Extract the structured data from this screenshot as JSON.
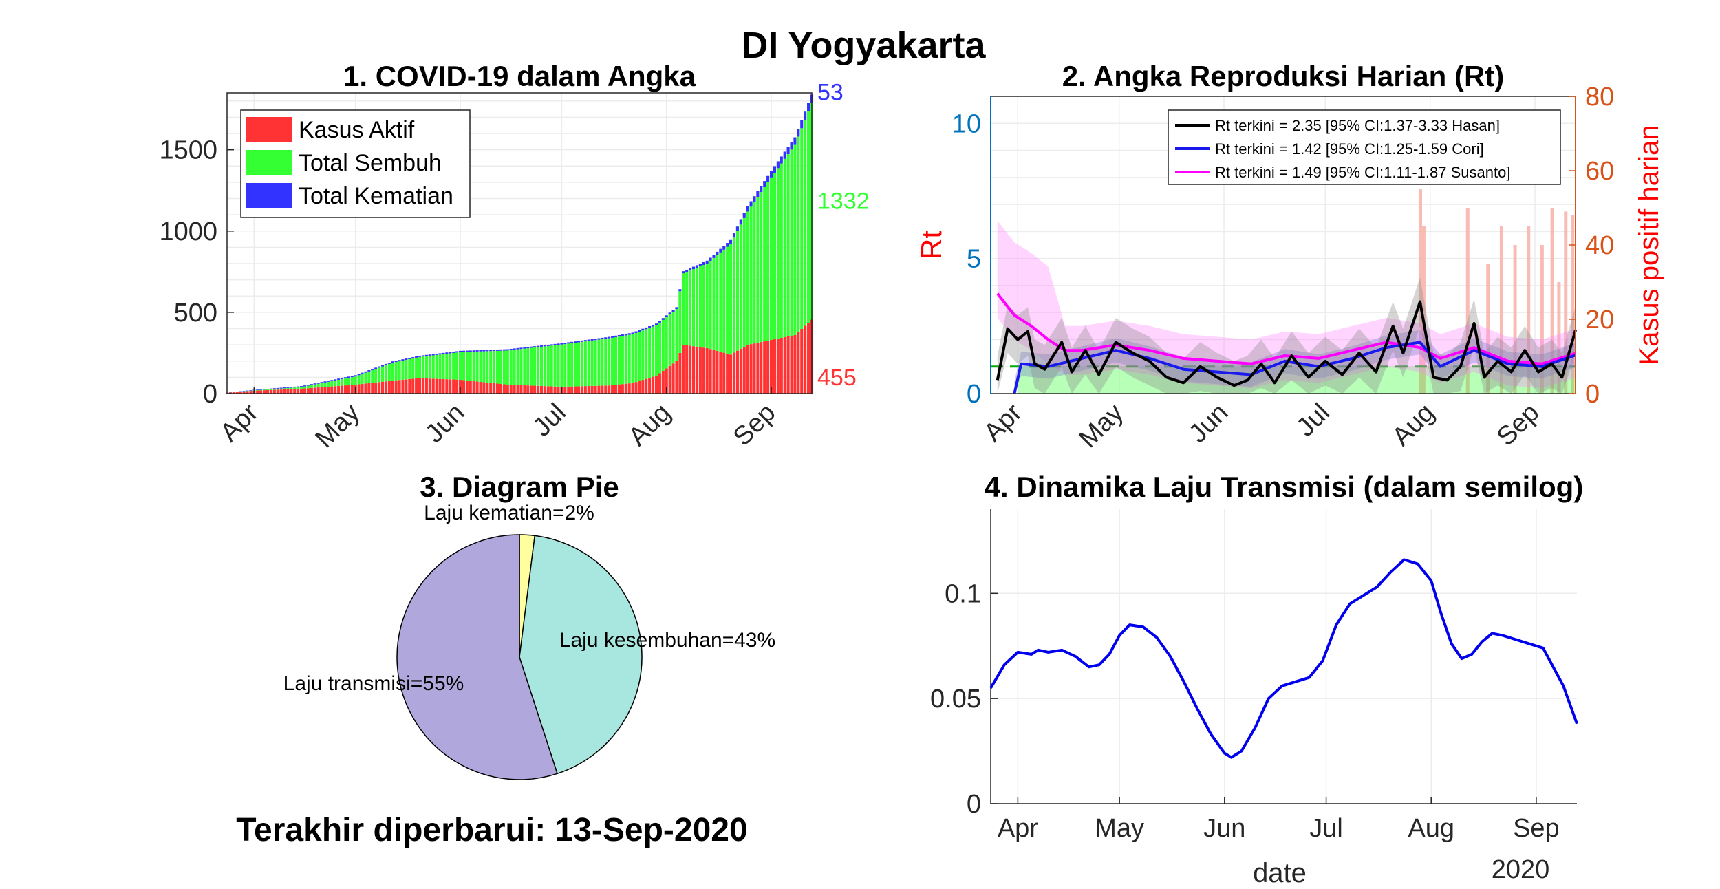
{
  "page": {
    "title": "DI Yogyakarta",
    "footer": "Terakhir diperbarui: 13-Sep-2020"
  },
  "colors": {
    "aktif": "#ff3333",
    "sembuh": "#33ff33",
    "kematian": "#3333ff",
    "rt_hasan": "#000000",
    "rt_cori": "#1a1aee",
    "rt_susanto": "#ff00ff",
    "daily_cases": "#f7b0a8",
    "transmission": "#0000ee",
    "pie_transmisi": "#b0a8dc",
    "pie_sembuh": "#a8e6e0",
    "pie_kematian": "#ffffa0"
  },
  "chart_data": [
    {
      "id": "p1",
      "type": "bar",
      "title": "1. COVID-19 dalam Angka",
      "stacked": true,
      "x_ticks": [
        "Apr",
        "May",
        "Jun",
        "Jul",
        "Aug",
        "Sep"
      ],
      "x_range": [
        "2020-03-24",
        "2020-09-13"
      ],
      "ylim": [
        0,
        1850
      ],
      "yticks": [
        0,
        500,
        1000,
        1500
      ],
      "grid": true,
      "legend": {
        "position": "top-left",
        "entries": [
          "Kasus Aktif",
          "Total Sembuh",
          "Total Kematian"
        ]
      },
      "end_labels": {
        "kematian": "53",
        "sembuh": "1332",
        "aktif": "455"
      },
      "series": [
        {
          "name": "Kasus Aktif",
          "points": [
            [
              "2020-03-24",
              5
            ],
            [
              "2020-04-01",
              18
            ],
            [
              "2020-04-15",
              30
            ],
            [
              "2020-05-01",
              55
            ],
            [
              "2020-05-12",
              80
            ],
            [
              "2020-05-20",
              95
            ],
            [
              "2020-06-01",
              85
            ],
            [
              "2020-06-15",
              55
            ],
            [
              "2020-07-01",
              42
            ],
            [
              "2020-07-15",
              50
            ],
            [
              "2020-07-22",
              65
            ],
            [
              "2020-07-29",
              110
            ],
            [
              "2020-08-04",
              200
            ],
            [
              "2020-08-06",
              300
            ],
            [
              "2020-08-13",
              280
            ],
            [
              "2020-08-20",
              240
            ],
            [
              "2020-08-25",
              300
            ],
            [
              "2020-09-01",
              330
            ],
            [
              "2020-09-08",
              360
            ],
            [
              "2020-09-13",
              455
            ]
          ]
        },
        {
          "name": "Total Sembuh",
          "points": [
            [
              "2020-03-24",
              0
            ],
            [
              "2020-04-01",
              2
            ],
            [
              "2020-04-15",
              10
            ],
            [
              "2020-05-01",
              50
            ],
            [
              "2020-05-12",
              110
            ],
            [
              "2020-05-20",
              130
            ],
            [
              "2020-06-01",
              170
            ],
            [
              "2020-06-15",
              210
            ],
            [
              "2020-07-01",
              260
            ],
            [
              "2020-07-15",
              290
            ],
            [
              "2020-07-22",
              300
            ],
            [
              "2020-07-29",
              310
            ],
            [
              "2020-08-04",
              320
            ],
            [
              "2020-08-06",
              440
            ],
            [
              "2020-08-13",
              520
            ],
            [
              "2020-08-20",
              680
            ],
            [
              "2020-08-25",
              820
            ],
            [
              "2020-09-01",
              1000
            ],
            [
              "2020-09-08",
              1170
            ],
            [
              "2020-09-13",
              1332
            ]
          ]
        },
        {
          "name": "Total Kematian",
          "points": [
            [
              "2020-03-24",
              1
            ],
            [
              "2020-04-01",
              3
            ],
            [
              "2020-04-15",
              6
            ],
            [
              "2020-05-01",
              8
            ],
            [
              "2020-05-12",
              8
            ],
            [
              "2020-05-20",
              8
            ],
            [
              "2020-06-01",
              8
            ],
            [
              "2020-06-15",
              8
            ],
            [
              "2020-07-01",
              8
            ],
            [
              "2020-07-15",
              9
            ],
            [
              "2020-07-22",
              10
            ],
            [
              "2020-07-29",
              11
            ],
            [
              "2020-08-04",
              12
            ],
            [
              "2020-08-06",
              13
            ],
            [
              "2020-08-13",
              18
            ],
            [
              "2020-08-20",
              25
            ],
            [
              "2020-08-25",
              32
            ],
            [
              "2020-09-01",
              40
            ],
            [
              "2020-09-08",
              47
            ],
            [
              "2020-09-13",
              53
            ]
          ]
        }
      ]
    },
    {
      "id": "p2",
      "type": "line",
      "title": "2. Angka Reproduksi Harian (Rt)",
      "ylabel": "Rt",
      "ylabel_right": "Kasus positif harian",
      "x_ticks": [
        "Apr",
        "May",
        "Jun",
        "Jul",
        "Aug",
        "Sep"
      ],
      "x_range": [
        "2020-03-24",
        "2020-09-13"
      ],
      "ylim": [
        0,
        11
      ],
      "yticks": [
        0,
        5,
        10
      ],
      "ylim_right": [
        0,
        80
      ],
      "yticks_right": [
        0,
        20,
        40,
        60,
        80
      ],
      "grid": true,
      "threshold": 1,
      "legend": {
        "position": "top-right",
        "entries": [
          "Rt terkini = 2.35 [95% CI:1.37-3.33 Hasan]",
          "Rt terkini = 1.42 [95% CI:1.25-1.59 Cori]",
          "Rt terkini = 1.49 [95% CI:1.11-1.87 Susanto]"
        ]
      },
      "series": [
        {
          "name": "Rt terkini = 2.35 [95% CI:1.37-3.33 Hasan]",
          "points": [
            [
              "2020-03-26",
              0.5
            ],
            [
              "2020-03-29",
              2.4
            ],
            [
              "2020-04-01",
              2.0
            ],
            [
              "2020-04-04",
              2.3
            ],
            [
              "2020-04-06",
              1.1
            ],
            [
              "2020-04-09",
              0.9
            ],
            [
              "2020-04-14",
              1.9
            ],
            [
              "2020-04-17",
              0.8
            ],
            [
              "2020-04-21",
              1.6
            ],
            [
              "2020-04-25",
              0.7
            ],
            [
              "2020-04-30",
              1.9
            ],
            [
              "2020-05-05",
              1.5
            ],
            [
              "2020-05-10",
              1.2
            ],
            [
              "2020-05-15",
              0.6
            ],
            [
              "2020-05-20",
              0.4
            ],
            [
              "2020-05-25",
              1.0
            ],
            [
              "2020-05-30",
              0.6
            ],
            [
              "2020-06-04",
              0.3
            ],
            [
              "2020-06-08",
              0.5
            ],
            [
              "2020-06-12",
              1.1
            ],
            [
              "2020-06-16",
              0.4
            ],
            [
              "2020-06-21",
              1.4
            ],
            [
              "2020-06-26",
              0.6
            ],
            [
              "2020-07-01",
              1.2
            ],
            [
              "2020-07-06",
              0.7
            ],
            [
              "2020-07-11",
              1.5
            ],
            [
              "2020-07-16",
              0.8
            ],
            [
              "2020-07-21",
              2.5
            ],
            [
              "2020-07-24",
              1.5
            ],
            [
              "2020-07-29",
              3.4
            ],
            [
              "2020-08-02",
              0.6
            ],
            [
              "2020-08-06",
              0.5
            ],
            [
              "2020-08-10",
              1.0
            ],
            [
              "2020-08-14",
              2.6
            ],
            [
              "2020-08-17",
              0.6
            ],
            [
              "2020-08-21",
              1.2
            ],
            [
              "2020-08-25",
              0.8
            ],
            [
              "2020-08-29",
              1.6
            ],
            [
              "2020-09-02",
              0.8
            ],
            [
              "2020-09-06",
              1.1
            ],
            [
              "2020-09-09",
              0.6
            ],
            [
              "2020-09-13",
              2.35
            ]
          ]
        },
        {
          "name": "Rt terkini = 1.42 [95% CI:1.25-1.59 Cori]",
          "points": [
            [
              "2020-03-31",
              0.0
            ],
            [
              "2020-04-02",
              1.1
            ],
            [
              "2020-04-10",
              1.0
            ],
            [
              "2020-04-20",
              1.3
            ],
            [
              "2020-04-30",
              1.6
            ],
            [
              "2020-05-10",
              1.3
            ],
            [
              "2020-05-20",
              0.9
            ],
            [
              "2020-05-30",
              0.8
            ],
            [
              "2020-06-09",
              0.7
            ],
            [
              "2020-06-19",
              1.2
            ],
            [
              "2020-06-29",
              1.0
            ],
            [
              "2020-07-09",
              1.3
            ],
            [
              "2020-07-19",
              1.7
            ],
            [
              "2020-07-29",
              1.9
            ],
            [
              "2020-08-04",
              1.0
            ],
            [
              "2020-08-14",
              1.6
            ],
            [
              "2020-08-24",
              1.1
            ],
            [
              "2020-09-03",
              1.0
            ],
            [
              "2020-09-13",
              1.42
            ]
          ]
        },
        {
          "name": "Rt terkini = 1.49 [95% CI:1.11-1.87 Susanto]",
          "points": [
            [
              "2020-03-26",
              3.7
            ],
            [
              "2020-03-31",
              2.9
            ],
            [
              "2020-04-05",
              2.5
            ],
            [
              "2020-04-10",
              2.0
            ],
            [
              "2020-04-15",
              1.6
            ],
            [
              "2020-04-20",
              1.6
            ],
            [
              "2020-04-30",
              1.8
            ],
            [
              "2020-05-10",
              1.6
            ],
            [
              "2020-05-20",
              1.3
            ],
            [
              "2020-05-30",
              1.2
            ],
            [
              "2020-06-09",
              1.1
            ],
            [
              "2020-06-19",
              1.4
            ],
            [
              "2020-06-29",
              1.3
            ],
            [
              "2020-07-09",
              1.6
            ],
            [
              "2020-07-19",
              1.9
            ],
            [
              "2020-07-29",
              1.7
            ],
            [
              "2020-08-04",
              1.3
            ],
            [
              "2020-08-14",
              1.7
            ],
            [
              "2020-08-24",
              1.2
            ],
            [
              "2020-09-03",
              1.1
            ],
            [
              "2020-09-13",
              1.49
            ]
          ]
        },
        {
          "name": "Kasus positif harian",
          "axis": "right",
          "points": [
            [
              "2020-07-29",
              55
            ],
            [
              "2020-07-30",
              45
            ],
            [
              "2020-08-12",
              50
            ],
            [
              "2020-08-18",
              35
            ],
            [
              "2020-08-22",
              45
            ],
            [
              "2020-08-26",
              40
            ],
            [
              "2020-08-30",
              45
            ],
            [
              "2020-09-03",
              40
            ],
            [
              "2020-09-06",
              50
            ],
            [
              "2020-09-08",
              30
            ],
            [
              "2020-09-10",
              49
            ],
            [
              "2020-09-12",
              48
            ]
          ]
        }
      ]
    },
    {
      "id": "p3",
      "type": "pie",
      "title": "3. Diagram Pie",
      "slices": [
        {
          "label": "Laju kematian=2%",
          "value": 2
        },
        {
          "label": "Laju kesembuhan=43%",
          "value": 43
        },
        {
          "label": "Laju transmisi=55%",
          "value": 55
        }
      ]
    },
    {
      "id": "p4",
      "type": "line",
      "title": "4. Dinamika Laju Transmisi (dalam semilog)",
      "xlabel": "date",
      "x_secondary": "2020",
      "x_ticks": [
        "Apr",
        "May",
        "Jun",
        "Jul",
        "Aug",
        "Sep"
      ],
      "x_range": [
        "2020-03-24",
        "2020-09-13"
      ],
      "ylim": [
        0,
        0.14
      ],
      "yticks": [
        "0",
        "0.05",
        "0.1"
      ],
      "grid": true,
      "series": [
        {
          "name": "",
          "points": [
            [
              "2020-03-24",
              0.055
            ],
            [
              "2020-03-28",
              0.066
            ],
            [
              "2020-04-01",
              0.072
            ],
            [
              "2020-04-05",
              0.071
            ],
            [
              "2020-04-07",
              0.073
            ],
            [
              "2020-04-10",
              0.072
            ],
            [
              "2020-04-14",
              0.073
            ],
            [
              "2020-04-18",
              0.07
            ],
            [
              "2020-04-22",
              0.065
            ],
            [
              "2020-04-25",
              0.066
            ],
            [
              "2020-04-28",
              0.071
            ],
            [
              "2020-05-01",
              0.08
            ],
            [
              "2020-05-04",
              0.085
            ],
            [
              "2020-05-08",
              0.084
            ],
            [
              "2020-05-12",
              0.079
            ],
            [
              "2020-05-16",
              0.07
            ],
            [
              "2020-05-20",
              0.058
            ],
            [
              "2020-05-24",
              0.045
            ],
            [
              "2020-05-28",
              0.033
            ],
            [
              "2020-06-01",
              0.024
            ],
            [
              "2020-06-03",
              0.022
            ],
            [
              "2020-06-06",
              0.025
            ],
            [
              "2020-06-10",
              0.036
            ],
            [
              "2020-06-14",
              0.05
            ],
            [
              "2020-06-18",
              0.056
            ],
            [
              "2020-06-22",
              0.058
            ],
            [
              "2020-06-26",
              0.06
            ],
            [
              "2020-06-30",
              0.068
            ],
            [
              "2020-07-04",
              0.085
            ],
            [
              "2020-07-08",
              0.095
            ],
            [
              "2020-07-12",
              0.099
            ],
            [
              "2020-07-16",
              0.103
            ],
            [
              "2020-07-20",
              0.11
            ],
            [
              "2020-07-24",
              0.116
            ],
            [
              "2020-07-28",
              0.114
            ],
            [
              "2020-08-01",
              0.106
            ],
            [
              "2020-08-04",
              0.09
            ],
            [
              "2020-08-07",
              0.076
            ],
            [
              "2020-08-10",
              0.069
            ],
            [
              "2020-08-13",
              0.071
            ],
            [
              "2020-08-16",
              0.077
            ],
            [
              "2020-08-19",
              0.081
            ],
            [
              "2020-08-22",
              0.08
            ],
            [
              "2020-08-26",
              0.078
            ],
            [
              "2020-08-30",
              0.076
            ],
            [
              "2020-09-03",
              0.074
            ],
            [
              "2020-09-05",
              0.068
            ],
            [
              "2020-09-09",
              0.056
            ],
            [
              "2020-09-13",
              0.038
            ]
          ]
        }
      ]
    }
  ]
}
